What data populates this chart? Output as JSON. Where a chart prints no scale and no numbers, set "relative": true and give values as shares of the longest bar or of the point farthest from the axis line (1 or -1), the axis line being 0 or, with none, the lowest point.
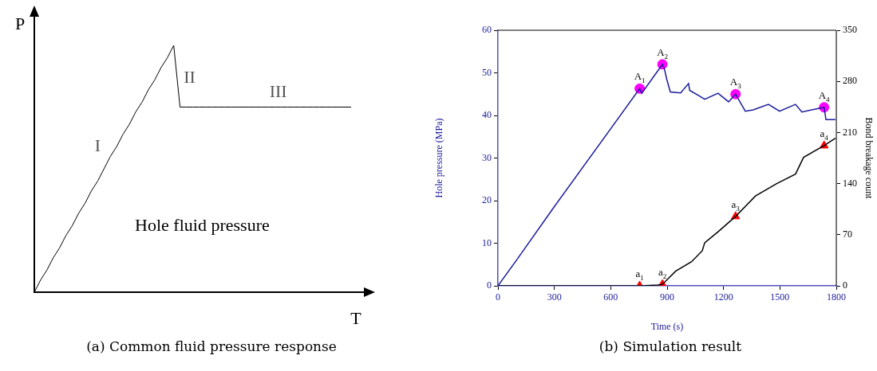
{
  "chart_data": [
    {
      "type": "line",
      "relative": true,
      "xlabel": "T",
      "ylabel": "P",
      "categories": [
        null,
        null,
        null,
        null,
        null,
        null,
        null,
        null,
        null,
        null,
        null,
        null,
        null,
        null,
        null,
        null,
        null,
        null,
        null,
        null,
        null,
        null,
        null,
        null,
        null,
        null,
        null,
        null,
        null,
        null,
        null,
        null,
        null,
        null,
        null,
        null,
        null,
        null,
        null,
        null,
        null,
        null,
        null,
        null,
        null,
        null,
        null,
        null,
        null,
        null,
        null
      ],
      "series": [
        {
          "name": "Hole fluid pressure",
          "color": "#000000",
          "values": [
            0,
            0.05,
            0.09,
            0.14,
            0.18,
            0.23,
            0.27,
            0.32,
            0.36,
            0.41,
            0.45,
            0.5,
            0.55,
            0.59,
            0.64,
            0.68,
            0.73,
            0.77,
            0.82,
            0.86,
            0.91,
            0.95,
            1,
            0.75,
            0.75,
            0.75,
            0.75,
            0.75,
            0.75,
            0.75,
            0.75,
            0.75,
            0.75,
            0.75,
            0.75,
            0.75,
            0.75,
            0.75,
            0.75,
            0.75,
            0.75,
            0.75,
            0.75,
            0.75,
            0.75,
            0.75,
            0.75,
            0.75,
            0.75,
            0.75,
            0.75
          ]
        }
      ],
      "annotations": [
        "I",
        "II",
        "III",
        "(a) Common fluid pressure response"
      ]
    },
    {
      "type": "line",
      "xlabel": "Time (s)",
      "ylabel": "Hole pressure (MPa)",
      "y2label": "Bond breakage count",
      "xlim": [
        0,
        1800
      ],
      "xticks": [
        0,
        300,
        600,
        900,
        1200,
        1500,
        1800
      ],
      "ylim": [
        0,
        60
      ],
      "yticks": [
        0,
        10,
        20,
        30,
        40,
        50,
        60
      ],
      "y2lim": [
        0,
        350
      ],
      "y2ticks": [
        0,
        70,
        140,
        210,
        280,
        350
      ],
      "series": [
        {
          "type": "line",
          "color": "#1a1a9c",
          "x": [
            0,
            100,
            300,
            600,
            754,
            765,
            875,
            885,
            898,
            917,
            972,
            1014,
            1020,
            1074,
            1100,
            1171,
            1227,
            1264,
            1316,
            1358,
            1439,
            1498,
            1583,
            1617,
            1710,
            1735,
            1745,
            1795
          ],
          "values": [
            0,
            6.1,
            18.6,
            36.9,
            46.3,
            45.2,
            52.0,
            51.0,
            48.5,
            45.5,
            45.3,
            47.5,
            45.9,
            44.5,
            43.8,
            45.2,
            43.2,
            45.0,
            41.0,
            41.3,
            42.6,
            41.0,
            42.6,
            40.8,
            41.7,
            41.9,
            39.0,
            39.0
          ]
        },
        {
          "type": "line",
          "color": "#000000",
          "axis": "y2",
          "x": [
            0,
            760,
            850,
            875,
            945,
            1030,
            1087,
            1100,
            1171,
            1264,
            1370,
            1483,
            1583,
            1626,
            1735,
            1795
          ],
          "values": [
            0,
            0,
            1,
            2,
            20,
            33,
            48,
            59,
            74,
            95,
            123,
            140,
            153,
            176,
            192,
            202
          ]
        },
        {
          "type": "scatter",
          "color": "#ff00ff",
          "marker": "circle",
          "x": [
            754,
            875,
            1264,
            1735
          ],
          "values": [
            46.3,
            52.0,
            45.0,
            41.9
          ]
        },
        {
          "type": "scatter",
          "color": "#ff0000",
          "marker": "triangle",
          "axis": "y2",
          "x": [
            754,
            875,
            1264,
            1735
          ],
          "values": [
            0,
            2,
            95,
            192
          ]
        }
      ],
      "annotations": [
        {
          "text": "A$_{1}$",
          "x": 754,
          "y": 46.3
        },
        {
          "text": "A$_{2}$",
          "x": 875,
          "y": 52.0
        },
        {
          "text": "A$_{3}$",
          "x": 1264,
          "y": 45.0
        },
        {
          "text": "A$_{4}$",
          "x": 1735,
          "y": 41.9
        },
        {
          "text": "a$_{1}$",
          "x": 754,
          "y": 0
        },
        {
          "text": "a$_{2}$",
          "x": 875,
          "y": 0.3
        },
        {
          "text": "a$_{3}$",
          "x": 1264,
          "y": 16.3
        },
        {
          "text": "a$_{4}$",
          "x": 1735,
          "y": 32.9
        },
        "(b) Simulation result"
      ]
    }
  ]
}
